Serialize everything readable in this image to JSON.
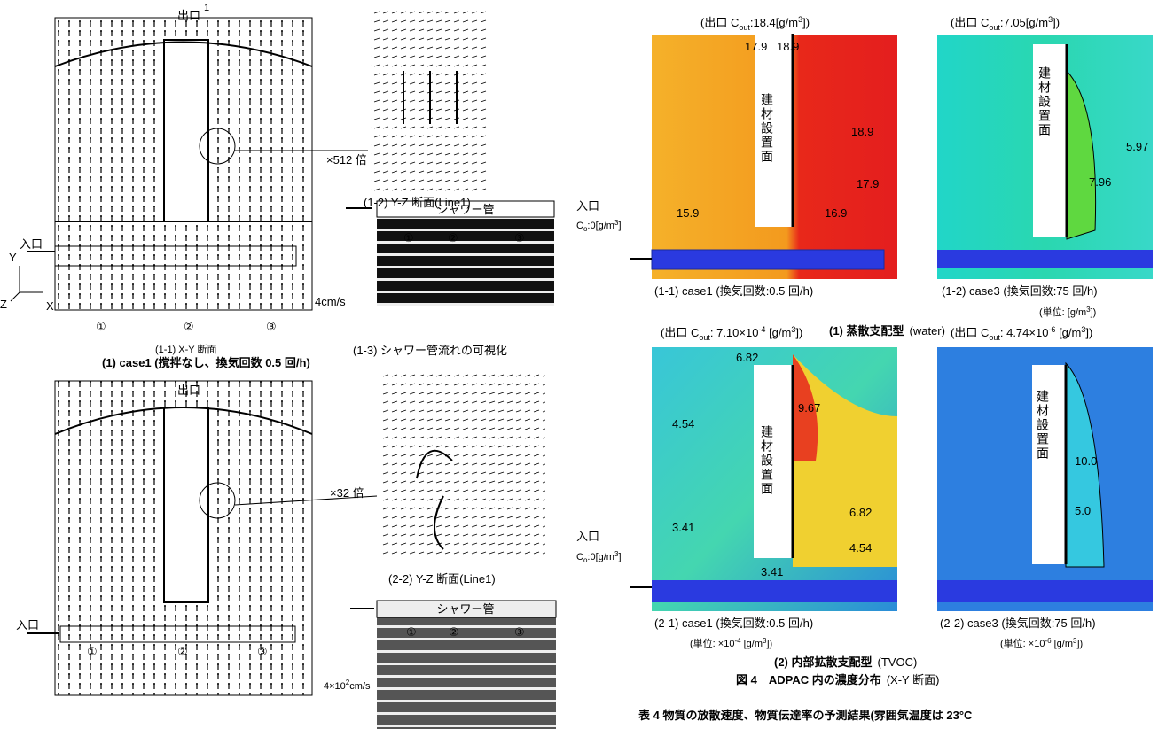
{
  "left": {
    "case1": {
      "outlet": "出口",
      "outlet_num": "1",
      "magnify": "×512 倍",
      "yz_caption": "(1-2) Y-Z 断面(Line1)",
      "shower": "シャワー管",
      "photo_marks": [
        "①",
        "②",
        "③"
      ],
      "inlet": "入口",
      "axes": [
        "Y",
        "Z",
        "X"
      ],
      "speed": "4cm/s",
      "marks": [
        "①",
        "②",
        "③"
      ],
      "xy_caption": "(1-1) X-Y 断面",
      "vis_caption": "(1-3) シャワー管流れの可視化",
      "title": "(1) case1 (撹拌なし、換気回数 0.5 回/h)"
    },
    "case2": {
      "outlet": "出口",
      "magnify": "×32 倍",
      "yz_caption": "(2-2) Y-Z 断面(Line1)",
      "shower": "シャワー管",
      "photo_marks": [
        "①",
        "②",
        "③"
      ],
      "inlet": "入口",
      "marks": [
        "①",
        "②",
        "③"
      ],
      "speed": [
        "4×10",
        "2",
        "cm/s"
      ]
    }
  },
  "right": {
    "p11": {
      "outlet": [
        "(出口 C",
        "out",
        ":18.4[g/m",
        "3",
        "])"
      ],
      "labels": [
        "17.9",
        "18.9",
        "18.9",
        "17.9",
        "16.9",
        "15.9"
      ],
      "material": "建材設置面",
      "caption": "(1-1) case1 (換気回数:0.5 回/h)"
    },
    "p12": {
      "outlet": [
        "(出口 C",
        "out",
        ":7.05[g/m",
        "3",
        "])"
      ],
      "labels": [
        "5.97",
        "7.96"
      ],
      "material": "建材設置面",
      "caption": "(1-2) case3 (換気回数:75 回/h)",
      "unit": [
        "(単位: [g/m",
        "3",
        "])"
      ]
    },
    "inlet1": {
      "inlet": "入口",
      "conc": [
        "C",
        "o",
        ":0[g/m",
        "3",
        "]"
      ]
    },
    "group1": {
      "title": "(1) 蒸散支配型",
      "sub": "(water)"
    },
    "p21": {
      "outlet": [
        "(出口 C",
        "out",
        ": 7.10×10",
        "-4",
        " [g/m",
        "3",
        "])"
      ],
      "labels": [
        "6.82",
        "9.67",
        "4.54",
        "3.41",
        "6.82",
        "4.54",
        "3.41"
      ],
      "material": "建材設置面",
      "caption": "(2-1) case1 (換気回数:0.5 回/h)",
      "unit": [
        "(単位: ×10",
        "-4",
        " [g/m",
        "3",
        "])"
      ]
    },
    "p22": {
      "outlet": [
        "(出口 C",
        "out",
        ": 4.74×10",
        "-6",
        " [g/m",
        "3",
        "])"
      ],
      "labels": [
        "10.0",
        "5.0"
      ],
      "material": "建材設置面",
      "caption": "(2-2) case3 (換気回数:75 回/h)",
      "unit": [
        "(単位: ×10",
        "-6",
        " [g/m",
        "3",
        "])"
      ]
    },
    "inlet2": {
      "inlet": "入口",
      "conc": [
        "C",
        "o",
        ":0[g/m",
        "3",
        "]"
      ]
    },
    "group2": {
      "title": "(2) 内部拡散支配型",
      "sub": "(TVOC)"
    },
    "figure_caption": "図 4　ADPAC 内の濃度分布",
    "figure_sub": "(X-Y 断面)",
    "table_caption": "表 4 物質の放散速度、物質伝達率の予測結果(雰囲気温度は 23°C"
  }
}
